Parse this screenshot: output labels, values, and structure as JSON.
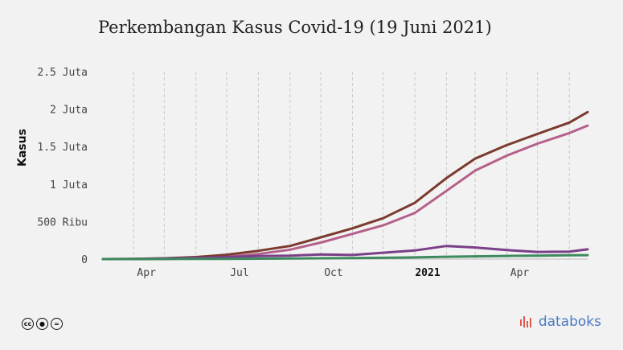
{
  "header": {
    "title": "Perkembangan Kasus Covid-19 (19 Juni 2021)"
  },
  "footer": {
    "brand": "databoks",
    "license_icons": [
      "cc-icon",
      "by-icon",
      "nd-icon"
    ]
  },
  "chart_data": {
    "type": "line",
    "ylabel": "Kasus",
    "ylim": [
      0,
      2500000
    ],
    "yticks": [
      {
        "value": 0,
        "label": "0"
      },
      {
        "value": 500000,
        "label": "500 Ribu"
      },
      {
        "value": 1000000,
        "label": "1 Juta"
      },
      {
        "value": 1500000,
        "label": "1.5 Juta"
      },
      {
        "value": 2000000,
        "label": "2 Juta"
      },
      {
        "value": 2500000,
        "label": "2.5 Juta"
      }
    ],
    "xlim": [
      "2020-03-02",
      "2021-06-19"
    ],
    "xticks": [
      {
        "date": "2020-04-01",
        "label": "Apr",
        "bold": false
      },
      {
        "date": "2020-07-01",
        "label": "Jul",
        "bold": false
      },
      {
        "date": "2020-10-01",
        "label": "Oct",
        "bold": false
      },
      {
        "date": "2021-01-01",
        "label": "2021",
        "bold": true
      },
      {
        "date": "2021-04-01",
        "label": "Apr",
        "bold": false
      }
    ],
    "gridlines": [
      "2020-04-01",
      "2020-05-01",
      "2020-06-01",
      "2020-07-01",
      "2020-08-01",
      "2020-09-01",
      "2020-10-01",
      "2020-11-01",
      "2020-12-01",
      "2021-01-01",
      "2021-02-01",
      "2021-03-01",
      "2021-04-01",
      "2021-05-01",
      "2021-06-01"
    ],
    "grid": true,
    "legend": "none",
    "series": [
      {
        "color": "#7b3a2e",
        "points": [
          [
            "2020-03-02",
            0
          ],
          [
            "2020-04-01",
            1700
          ],
          [
            "2020-05-01",
            10500
          ],
          [
            "2020-06-01",
            27000
          ],
          [
            "2020-07-01",
            58000
          ],
          [
            "2020-08-01",
            110000
          ],
          [
            "2020-09-01",
            175000
          ],
          [
            "2020-10-01",
            290000
          ],
          [
            "2020-11-01",
            410000
          ],
          [
            "2020-12-01",
            545000
          ],
          [
            "2021-01-01",
            750000
          ],
          [
            "2021-02-01",
            1080000
          ],
          [
            "2021-03-01",
            1340000
          ],
          [
            "2021-04-01",
            1520000
          ],
          [
            "2021-05-01",
            1670000
          ],
          [
            "2021-06-01",
            1820000
          ],
          [
            "2021-06-19",
            1960000
          ]
        ]
      },
      {
        "color": "#b5608a",
        "points": [
          [
            "2020-03-02",
            0
          ],
          [
            "2020-04-01",
            500
          ],
          [
            "2020-05-01",
            2500
          ],
          [
            "2020-06-01",
            9000
          ],
          [
            "2020-07-01",
            28000
          ],
          [
            "2020-08-01",
            68000
          ],
          [
            "2020-09-01",
            126000
          ],
          [
            "2020-10-01",
            220000
          ],
          [
            "2020-11-01",
            336000
          ],
          [
            "2020-12-01",
            450000
          ],
          [
            "2021-01-01",
            615000
          ],
          [
            "2021-02-01",
            910000
          ],
          [
            "2021-03-01",
            1180000
          ],
          [
            "2021-04-01",
            1380000
          ],
          [
            "2021-05-01",
            1540000
          ],
          [
            "2021-06-01",
            1680000
          ],
          [
            "2021-06-19",
            1780000
          ]
        ]
      },
      {
        "color": "#7a3f88",
        "points": [
          [
            "2020-03-02",
            0
          ],
          [
            "2020-04-01",
            1200
          ],
          [
            "2020-05-01",
            8000
          ],
          [
            "2020-06-01",
            16000
          ],
          [
            "2020-07-01",
            28000
          ],
          [
            "2020-08-01",
            40000
          ],
          [
            "2020-09-01",
            45000
          ],
          [
            "2020-10-01",
            62000
          ],
          [
            "2020-11-01",
            55000
          ],
          [
            "2020-12-01",
            85000
          ],
          [
            "2021-01-01",
            115000
          ],
          [
            "2021-02-01",
            175000
          ],
          [
            "2021-03-01",
            155000
          ],
          [
            "2021-04-01",
            120000
          ],
          [
            "2021-05-01",
            95000
          ],
          [
            "2021-06-01",
            100000
          ],
          [
            "2021-06-19",
            130000
          ]
        ]
      },
      {
        "color": "#3e8a5e",
        "points": [
          [
            "2020-03-02",
            0
          ],
          [
            "2020-04-01",
            150
          ],
          [
            "2020-05-01",
            800
          ],
          [
            "2020-06-01",
            1700
          ],
          [
            "2020-07-01",
            3000
          ],
          [
            "2020-08-01",
            5000
          ],
          [
            "2020-09-01",
            7000
          ],
          [
            "2020-10-01",
            11000
          ],
          [
            "2020-11-01",
            14000
          ],
          [
            "2020-12-01",
            17000
          ],
          [
            "2021-01-01",
            22000
          ],
          [
            "2021-02-01",
            31000
          ],
          [
            "2021-03-01",
            37000
          ],
          [
            "2021-04-01",
            42000
          ],
          [
            "2021-05-01",
            46000
          ],
          [
            "2021-06-01",
            50000
          ],
          [
            "2021-06-19",
            53000
          ]
        ]
      }
    ]
  }
}
